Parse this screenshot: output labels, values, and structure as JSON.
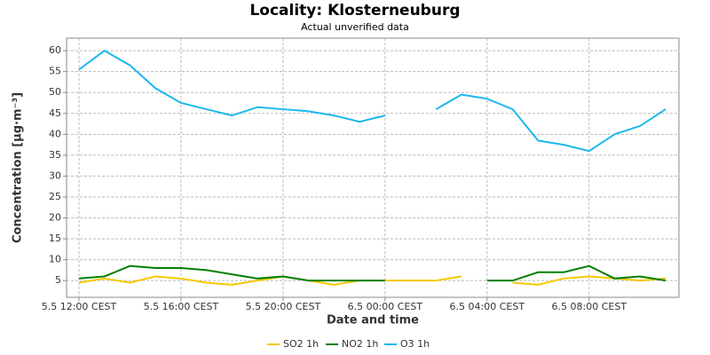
{
  "chart_data": {
    "type": "line",
    "title": "Locality: Klosterneuburg",
    "subtitle": "Actual unverified data",
    "x_label": "Date and time",
    "y_label": "Concentration [µg·m⁻³]",
    "categories": [
      "5.5 12:00 CEST",
      null,
      null,
      null,
      "5.5 16:00 CEST",
      null,
      null,
      null,
      "5.5 20:00 CEST",
      null,
      null,
      null,
      "6.5 00:00 CEST",
      null,
      null,
      null,
      "6.5 04:00 CEST",
      null,
      null,
      null,
      "6.5 08:00 CEST",
      null,
      null,
      null
    ],
    "series": [
      {
        "name": "SO2 1h",
        "color": "#f5c800",
        "values": [
          4.5,
          5.5,
          4.5,
          6,
          5.5,
          4.5,
          4,
          5,
          6,
          5,
          4,
          5,
          5,
          5,
          5,
          6,
          null,
          4.5,
          4,
          5.5,
          6,
          5.5,
          5,
          5.5
        ]
      },
      {
        "name": "NO2 1h",
        "color": "#008000",
        "values": [
          5.5,
          6,
          8.5,
          8,
          8,
          7.5,
          6.5,
          5.5,
          6,
          5,
          5,
          5,
          5,
          null,
          null,
          null,
          5,
          5,
          7,
          7,
          8.5,
          5.5,
          6,
          5
        ]
      },
      {
        "name": "O3 1h",
        "color": "#1cb8ee",
        "values": [
          55.5,
          60,
          56.5,
          51,
          47.5,
          46,
          44.5,
          46.5,
          46,
          45.5,
          44.5,
          43,
          44.5,
          null,
          46,
          49.5,
          48.5,
          46,
          38.5,
          37.5,
          36,
          40,
          42,
          46
        ]
      }
    ],
    "ylim": [
      1,
      63
    ],
    "yticks": [
      5,
      10,
      15,
      20,
      25,
      30,
      35,
      40,
      45,
      50,
      55,
      60
    ],
    "grid": true,
    "legend": "bottom"
  }
}
